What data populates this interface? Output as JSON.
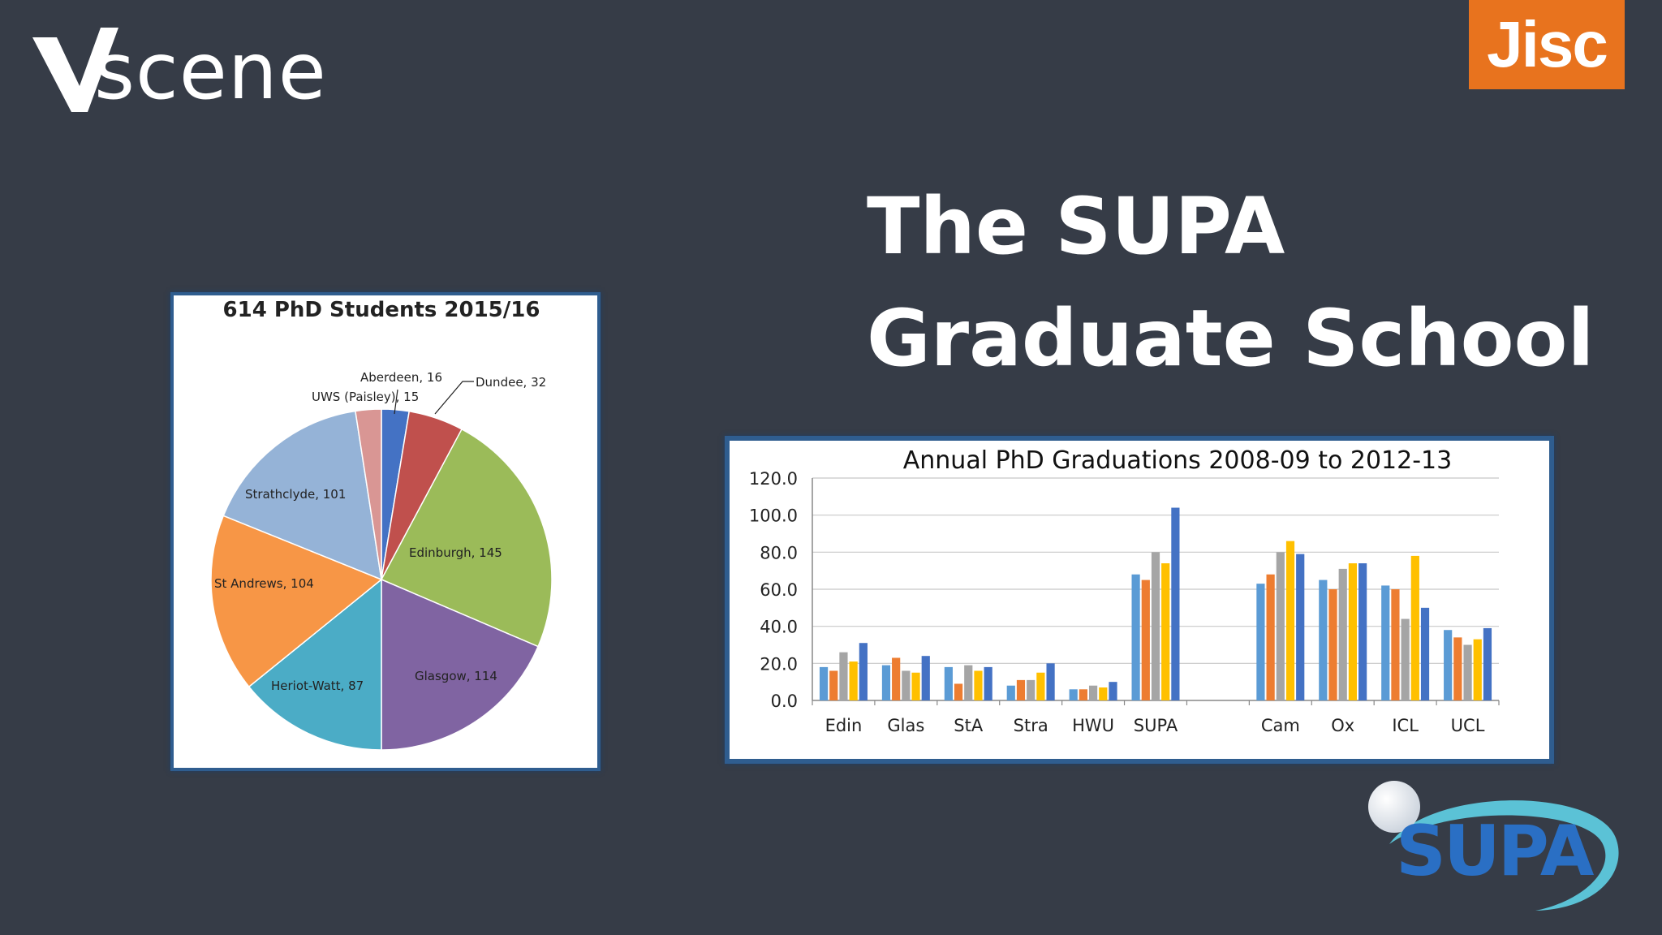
{
  "header": {
    "vscene_logo_text": "scene",
    "jisc_logo_text": "Jisc"
  },
  "slide": {
    "title_line1": "The SUPA",
    "title_line2": "Graduate School"
  },
  "supa_logo_text": "SUPA",
  "colors": {
    "background": "#363c47",
    "jisc_orange": "#e8731e",
    "card_border": "#2f5d8f"
  },
  "chart_data": [
    {
      "type": "pie",
      "title": "614 PhD Students 2015/16",
      "slices": [
        {
          "label": "Aberdeen",
          "value": 16,
          "color": "#4472c4",
          "text": "Aberdeen,  16"
        },
        {
          "label": "Dundee",
          "value": 32,
          "color": "#c0504d",
          "text": "Dundee,  32"
        },
        {
          "label": "Edinburgh",
          "value": 145,
          "color": "#9bbb59",
          "text": "Edinburgh, 145"
        },
        {
          "label": "Glasgow",
          "value": 114,
          "color": "#8064a2",
          "text": "Glasgow, 114"
        },
        {
          "label": "Heriot-Watt",
          "value": 87,
          "color": "#4bacc6",
          "text": "Heriot-Watt, 87"
        },
        {
          "label": "St Andrews",
          "value": 104,
          "color": "#f79646",
          "text": "St Andrews, 104"
        },
        {
          "label": "Strathclyde",
          "value": 101,
          "color": "#95b3d7",
          "text": "Strathclyde, 101"
        },
        {
          "label": "UWS (Paisley)",
          "value": 15,
          "color": "#d99694",
          "text": "UWS (Paisley), 15"
        }
      ]
    },
    {
      "type": "bar",
      "title": "Annual PhD Graduations 2008-09 to 2012-13",
      "categories": [
        "Edin",
        "Glas",
        "StA",
        "Stra",
        "HWU",
        "SUPA",
        "",
        "Cam",
        "Ox",
        "ICL",
        "UCL"
      ],
      "ylim": [
        0,
        120
      ],
      "yticks": [
        "0.0",
        "20.0",
        "40.0",
        "60.0",
        "80.0",
        "100.0",
        "120.0"
      ],
      "grid": true,
      "series_colors": [
        "#5b9bd5",
        "#ed7d31",
        "#a5a5a5",
        "#ffc000",
        "#4472c4"
      ],
      "series": [
        {
          "values": [
            18,
            19,
            18,
            8,
            6,
            68,
            null,
            63,
            65,
            62,
            38
          ]
        },
        {
          "values": [
            16,
            23,
            9,
            11,
            6,
            65,
            null,
            68,
            60,
            60,
            34
          ]
        },
        {
          "values": [
            26,
            16,
            19,
            11,
            8,
            80,
            null,
            80,
            71,
            44,
            30
          ]
        },
        {
          "values": [
            21,
            15,
            16,
            15,
            7,
            74,
            null,
            86,
            74,
            78,
            33
          ]
        },
        {
          "values": [
            31,
            24,
            18,
            20,
            10,
            104,
            null,
            79,
            74,
            50,
            39
          ]
        }
      ]
    }
  ]
}
